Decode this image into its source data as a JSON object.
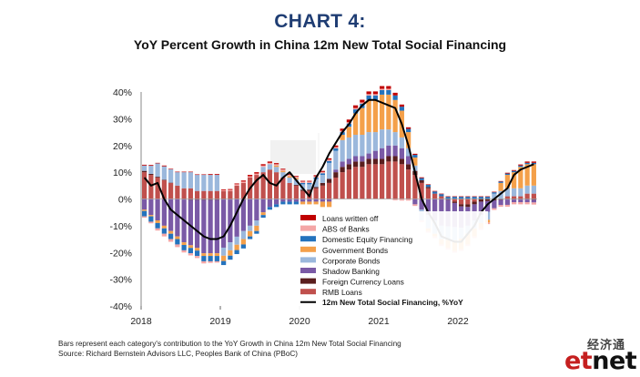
{
  "title": "CHART 4:",
  "subtitle": "YoY Percent Growth in China 12m New Total Social Financing",
  "footnote_line1": "Bars represent each category's contribution to the YoY Growth in China 12m New Total Social Financing",
  "footnote_line2": "Source: Richard Bernstein Advisors LLC, Peoples Bank of China (PBoC)",
  "brand": {
    "cn": "经济通",
    "e": "et",
    "rest": "net"
  },
  "chart_data": {
    "type": "bar",
    "stacked": true,
    "ylim": [
      -40,
      40
    ],
    "yticks": [
      40,
      30,
      20,
      10,
      0,
      -10,
      -20,
      -30,
      -40
    ],
    "ytick_labels": [
      "40%",
      "30%",
      "20%",
      "10%",
      "0%",
      "-10%",
      "-20%",
      "-30%",
      "-40%"
    ],
    "xtick_labels": [
      "2018",
      "2019",
      "2020",
      "2021",
      "2022"
    ],
    "start_year": 2018,
    "series": [
      {
        "name": "Loans written off",
        "color": "#c00000",
        "values": [
          0.3,
          0.3,
          0.2,
          0.3,
          0.2,
          0.2,
          0.2,
          0.2,
          0.2,
          0.2,
          0.3,
          0.3,
          0.3,
          0.3,
          0.3,
          0.4,
          0.5,
          0.5,
          0.5,
          0.5,
          0.4,
          0.3,
          0.3,
          0.3,
          0.3,
          0.3,
          0.4,
          0.4,
          0.5,
          0.6,
          0.8,
          1.0,
          1.0,
          1.0,
          1.0,
          1.0,
          1.0,
          1.0,
          1.0,
          0.8,
          0.6,
          0.4,
          0.3,
          0.2,
          0.2,
          0.2,
          0.2,
          0.2,
          0.2,
          0.2,
          0.2,
          0.2,
          0.2,
          0.2,
          0.2,
          0.3,
          0.3,
          0.4,
          0.5,
          0.5
        ]
      },
      {
        "name": "ABS of Banks",
        "color": "#f4a6a6",
        "values": [
          -0.5,
          -0.6,
          -0.8,
          -1.0,
          -1.0,
          -1.0,
          -0.8,
          -0.8,
          -0.8,
          -0.8,
          -0.6,
          -0.5,
          0.3,
          0.4,
          0.5,
          0.5,
          0.5,
          0.5,
          0.5,
          0.5,
          0.5,
          0.5,
          0.5,
          0.5,
          0.5,
          0.5,
          0.5,
          0.5,
          0.5,
          0.5,
          0.5,
          0.5,
          0.5,
          0.5,
          0.5,
          0.5,
          0.5,
          0.5,
          -0.5,
          -0.6,
          -0.6,
          -0.6,
          -0.6,
          -0.6,
          -0.6,
          -0.6,
          -0.6,
          -0.6,
          -0.6,
          -0.6,
          -0.6,
          -0.6,
          -0.6,
          -0.6,
          -0.6,
          -0.7,
          -0.8,
          -0.8,
          -0.8,
          -0.8
        ]
      },
      {
        "name": "Domestic Equity Financing",
        "color": "#2473bd",
        "values": [
          -2,
          -2,
          -2,
          -2,
          -2,
          -2,
          -2,
          -2,
          -2,
          -2,
          -2,
          -2,
          -1.5,
          -1.5,
          -1.5,
          -1.5,
          -1,
          -1,
          -1,
          -1,
          -1,
          -1,
          -1,
          -1,
          0.5,
          0.5,
          0.5,
          0.6,
          0.7,
          0.9,
          1,
          1.2,
          1.5,
          1.6,
          1.7,
          1.7,
          1.7,
          1.7,
          1.7,
          1.5,
          1.2,
          1,
          0.8,
          0.8,
          0.8,
          0.8,
          0.8,
          0.8,
          0.8,
          0.8,
          0.8,
          0.8,
          0.8,
          0.5,
          0.5,
          0.5,
          0.5,
          0.5,
          0.5,
          0.5
        ]
      },
      {
        "name": "Government Bonds",
        "color": "#f4a04a",
        "values": [
          -0.5,
          -0.5,
          -1,
          -1,
          -1,
          -1,
          -1,
          -1,
          -1,
          -1,
          -1,
          -1,
          -2,
          -2,
          -2,
          -2,
          -2,
          -2,
          -1,
          0,
          0.5,
          0.5,
          0.5,
          0.5,
          -1,
          -1,
          -1,
          -2,
          -2,
          0,
          2,
          4,
          8,
          10,
          12,
          12,
          13,
          13,
          12,
          10,
          6,
          3,
          0,
          -1,
          -1,
          -2,
          -3,
          -4,
          -4,
          -4,
          -3,
          -2,
          -1,
          0,
          3,
          5,
          6,
          8,
          8,
          8
        ]
      },
      {
        "name": "Corporate Bonds",
        "color": "#9bb8dc",
        "values": [
          2,
          3,
          5,
          5,
          5,
          5,
          6,
          6,
          6,
          6,
          6,
          6,
          -3,
          -3,
          -3,
          -3,
          -2,
          -2,
          2,
          2,
          2,
          2,
          2,
          2,
          2,
          2,
          3,
          3,
          6,
          7,
          8,
          8,
          8,
          8,
          8,
          7,
          7,
          6,
          5,
          4,
          3,
          2,
          -4,
          -5,
          -5,
          -5,
          -5,
          -5,
          -4,
          -3,
          -3,
          -3,
          -3,
          2,
          3,
          3,
          3,
          3,
          3,
          3
        ]
      },
      {
        "name": "Shadow Banking",
        "color": "#7a5aa6",
        "values": [
          -4,
          -6,
          -8,
          -10,
          -12,
          -14,
          -16,
          -17,
          -18,
          -20,
          -20,
          -20,
          -18,
          -16,
          -14,
          -12,
          -10,
          -8,
          -5,
          -3,
          -2,
          -1,
          -1,
          -1,
          -1,
          -1,
          -1,
          -1,
          -1,
          1,
          2,
          2,
          2,
          2,
          2,
          3,
          4,
          4,
          4,
          4,
          3,
          -2,
          -4,
          -6,
          -8,
          -10,
          -10,
          -9,
          -8,
          -7,
          -6,
          -5,
          -4,
          -3,
          -2,
          -2,
          -1,
          -1,
          -1,
          -1
        ]
      },
      {
        "name": "Foreign Currency Loans",
        "color": "#5a1e1e",
        "values": [
          0.5,
          0.4,
          0.3,
          0.2,
          0.1,
          0,
          -0.2,
          -0.3,
          -0.3,
          -0.3,
          -0.3,
          -0.3,
          -0.2,
          -0.2,
          -0.1,
          0,
          0,
          0,
          0,
          0,
          0,
          0,
          0,
          0.3,
          0.5,
          0.5,
          0.5,
          1,
          1.5,
          2,
          2,
          2,
          2,
          2,
          2,
          2,
          2,
          2,
          2,
          2,
          2,
          1.5,
          1,
          0.5,
          0,
          0,
          -0.3,
          -0.5,
          -0.8,
          -1,
          -1,
          -1,
          -0.8,
          -0.5,
          -0.3,
          -0.2,
          -0.2,
          -0.2,
          -0.2,
          -0.3
        ]
      },
      {
        "name": "RMB Loans",
        "color": "#c0504d",
        "values": [
          10,
          9,
          8,
          7,
          6,
          5,
          4,
          4,
          3,
          3,
          3,
          3,
          3,
          3,
          5,
          6,
          8,
          9,
          10,
          11,
          10,
          8,
          6,
          5,
          3,
          3,
          4,
          5,
          6,
          8,
          10,
          11,
          12,
          12,
          13,
          13,
          13,
          14,
          14,
          13,
          11,
          9,
          6,
          4,
          2,
          1,
          0,
          -1,
          -2,
          -2,
          -1,
          0,
          0,
          0,
          0,
          1,
          1,
          1,
          2,
          2
        ]
      }
    ],
    "line": {
      "name": "12m New Total Social Financing, %YoY",
      "color": "#000000",
      "values": [
        8,
        5,
        6,
        0,
        -4,
        -6,
        -8,
        -10,
        -12,
        -14,
        -15,
        -15,
        -14,
        -10,
        -5,
        0,
        4,
        7,
        9,
        6,
        5,
        8,
        10,
        7,
        4,
        1,
        8,
        12,
        17,
        21,
        25,
        28,
        32,
        35,
        37,
        37,
        36,
        35,
        34,
        28,
        20,
        10,
        0,
        -5,
        -9,
        -14,
        -15,
        -16,
        -16,
        -13,
        -10,
        -5,
        -2,
        0,
        2,
        4,
        9,
        11,
        12,
        13
      ]
    },
    "legend_position": "bottom-center"
  }
}
